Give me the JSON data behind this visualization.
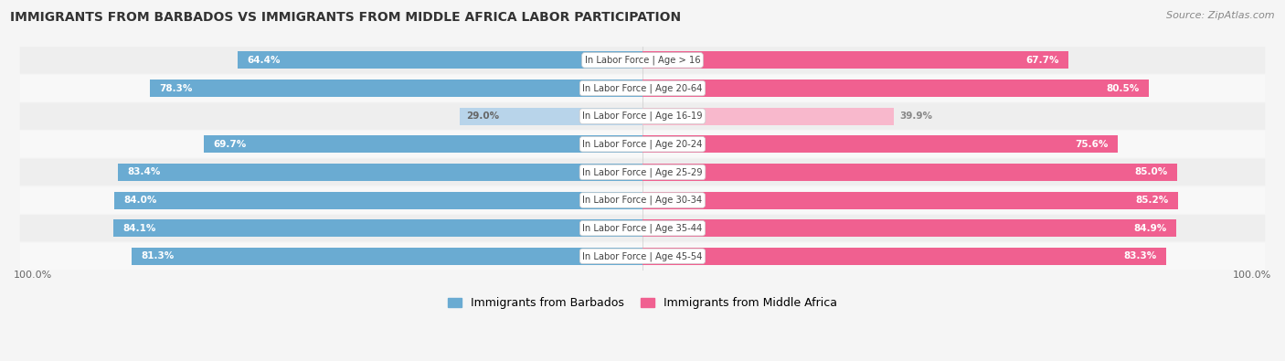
{
  "title": "IMMIGRANTS FROM BARBADOS VS IMMIGRANTS FROM MIDDLE AFRICA LABOR PARTICIPATION",
  "source": "Source: ZipAtlas.com",
  "categories": [
    "In Labor Force | Age > 16",
    "In Labor Force | Age 20-64",
    "In Labor Force | Age 16-19",
    "In Labor Force | Age 20-24",
    "In Labor Force | Age 25-29",
    "In Labor Force | Age 30-34",
    "In Labor Force | Age 35-44",
    "In Labor Force | Age 45-54"
  ],
  "barbados_values": [
    64.4,
    78.3,
    29.0,
    69.7,
    83.4,
    84.0,
    84.1,
    81.3
  ],
  "middle_africa_values": [
    67.7,
    80.5,
    39.9,
    75.6,
    85.0,
    85.2,
    84.9,
    83.3
  ],
  "barbados_color": "#6aabd2",
  "barbados_color_light": "#b8d4ea",
  "middle_africa_color": "#f06090",
  "middle_africa_color_light": "#f8b8cc",
  "bar_height": 0.62,
  "bg_color": "#f5f5f5",
  "row_bg_even": "#eeeeee",
  "row_bg_odd": "#f8f8f8",
  "max_value": 100.0,
  "legend_label_barbados": "Immigrants from Barbados",
  "legend_label_middle_africa": "Immigrants from Middle Africa",
  "light_threshold": 50
}
